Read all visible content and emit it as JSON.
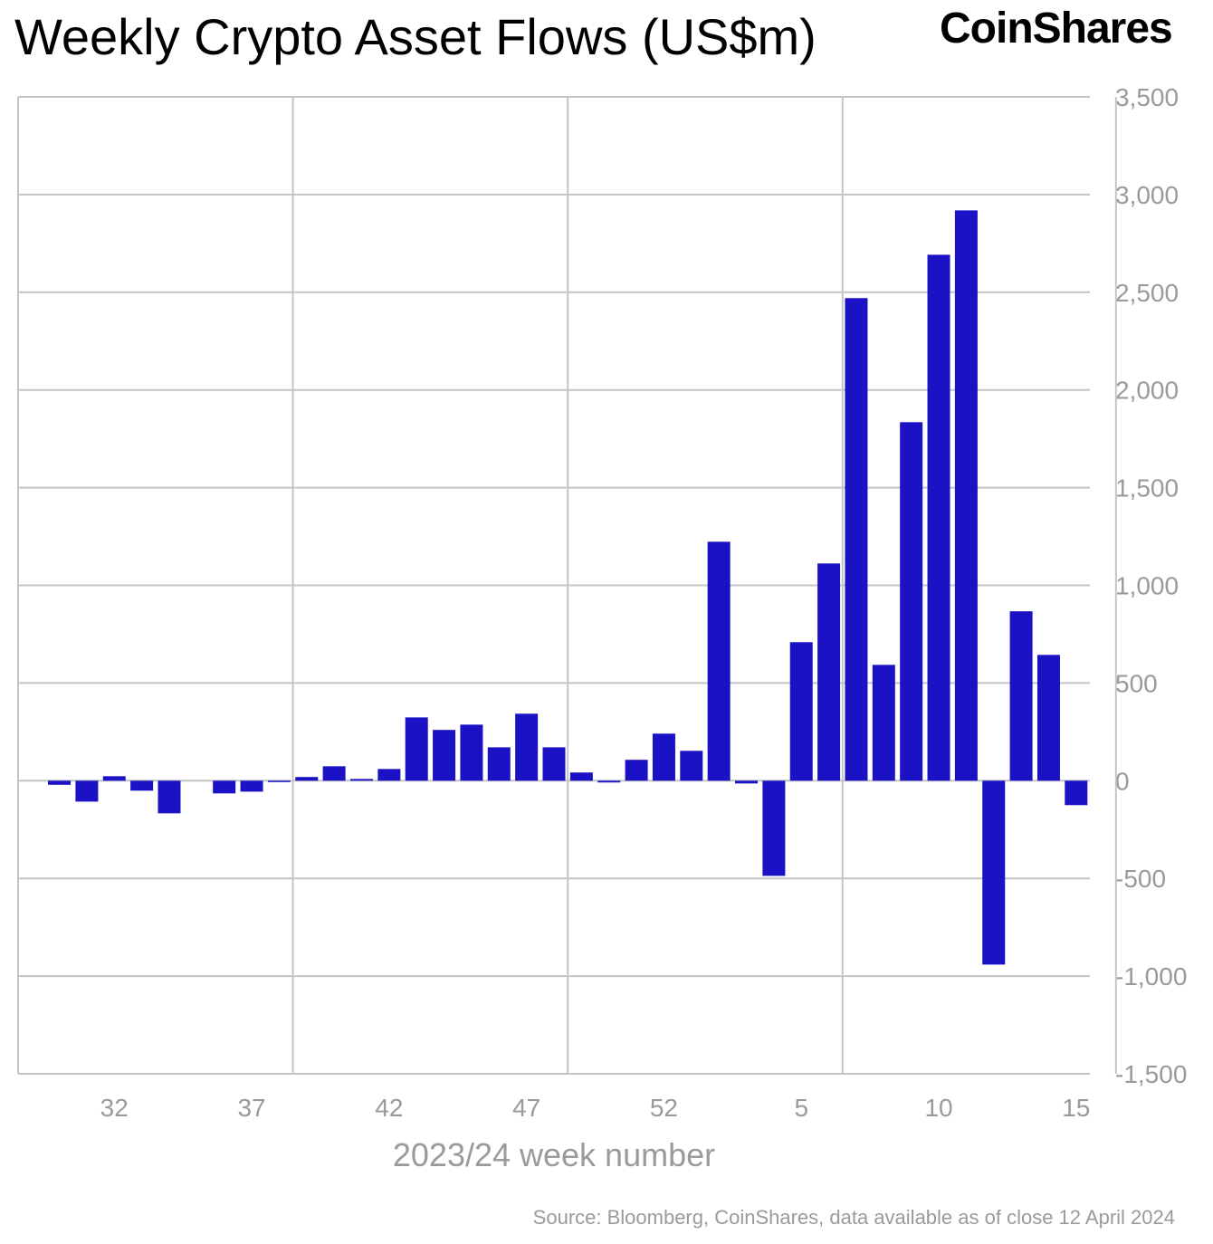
{
  "chart_data": {
    "type": "bar",
    "title": "Weekly Crypto Asset Flows (US$m)",
    "xlabel": "2023/24 week number",
    "ylabel": "",
    "ylim": [
      -1500,
      3500
    ],
    "yticks": [
      "3,500",
      "3,000",
      "2,500",
      "2,000",
      "1,500",
      "1,000",
      "500",
      "0",
      "-500",
      "-1,000",
      "-1,500"
    ],
    "ytick_values": [
      3500,
      3000,
      2500,
      2000,
      1500,
      1000,
      500,
      0,
      -500,
      -1000,
      -1500
    ],
    "xtick_labels": [
      "32",
      "37",
      "42",
      "47",
      "52",
      "5",
      "10",
      "15"
    ],
    "grid": true,
    "bar_color": "#1a12c4",
    "categories": [
      "30",
      "31",
      "32",
      "33",
      "34",
      "35",
      "36",
      "37",
      "38",
      "39",
      "40",
      "41",
      "42",
      "43",
      "44",
      "45",
      "46",
      "47",
      "48",
      "49",
      "50",
      "51",
      "52",
      "1",
      "2",
      "3",
      "4",
      "5",
      "6",
      "7",
      "8",
      "9",
      "10",
      "11",
      "12",
      "13",
      "14",
      "15"
    ],
    "values": [
      -21,
      -107,
      23,
      -51,
      -167,
      0,
      -65,
      -56,
      -5,
      19,
      74,
      9,
      60,
      324,
      260,
      287,
      171,
      343,
      171,
      42,
      -9,
      107,
      241,
      153,
      1223,
      -14,
      -487,
      709,
      1112,
      2470,
      593,
      1835,
      2692,
      2919,
      -941,
      867,
      644,
      -125
    ]
  },
  "logo": "CoinShares",
  "source": "Source: Bloomberg, CoinShares, data available as of close 12 April 2024"
}
